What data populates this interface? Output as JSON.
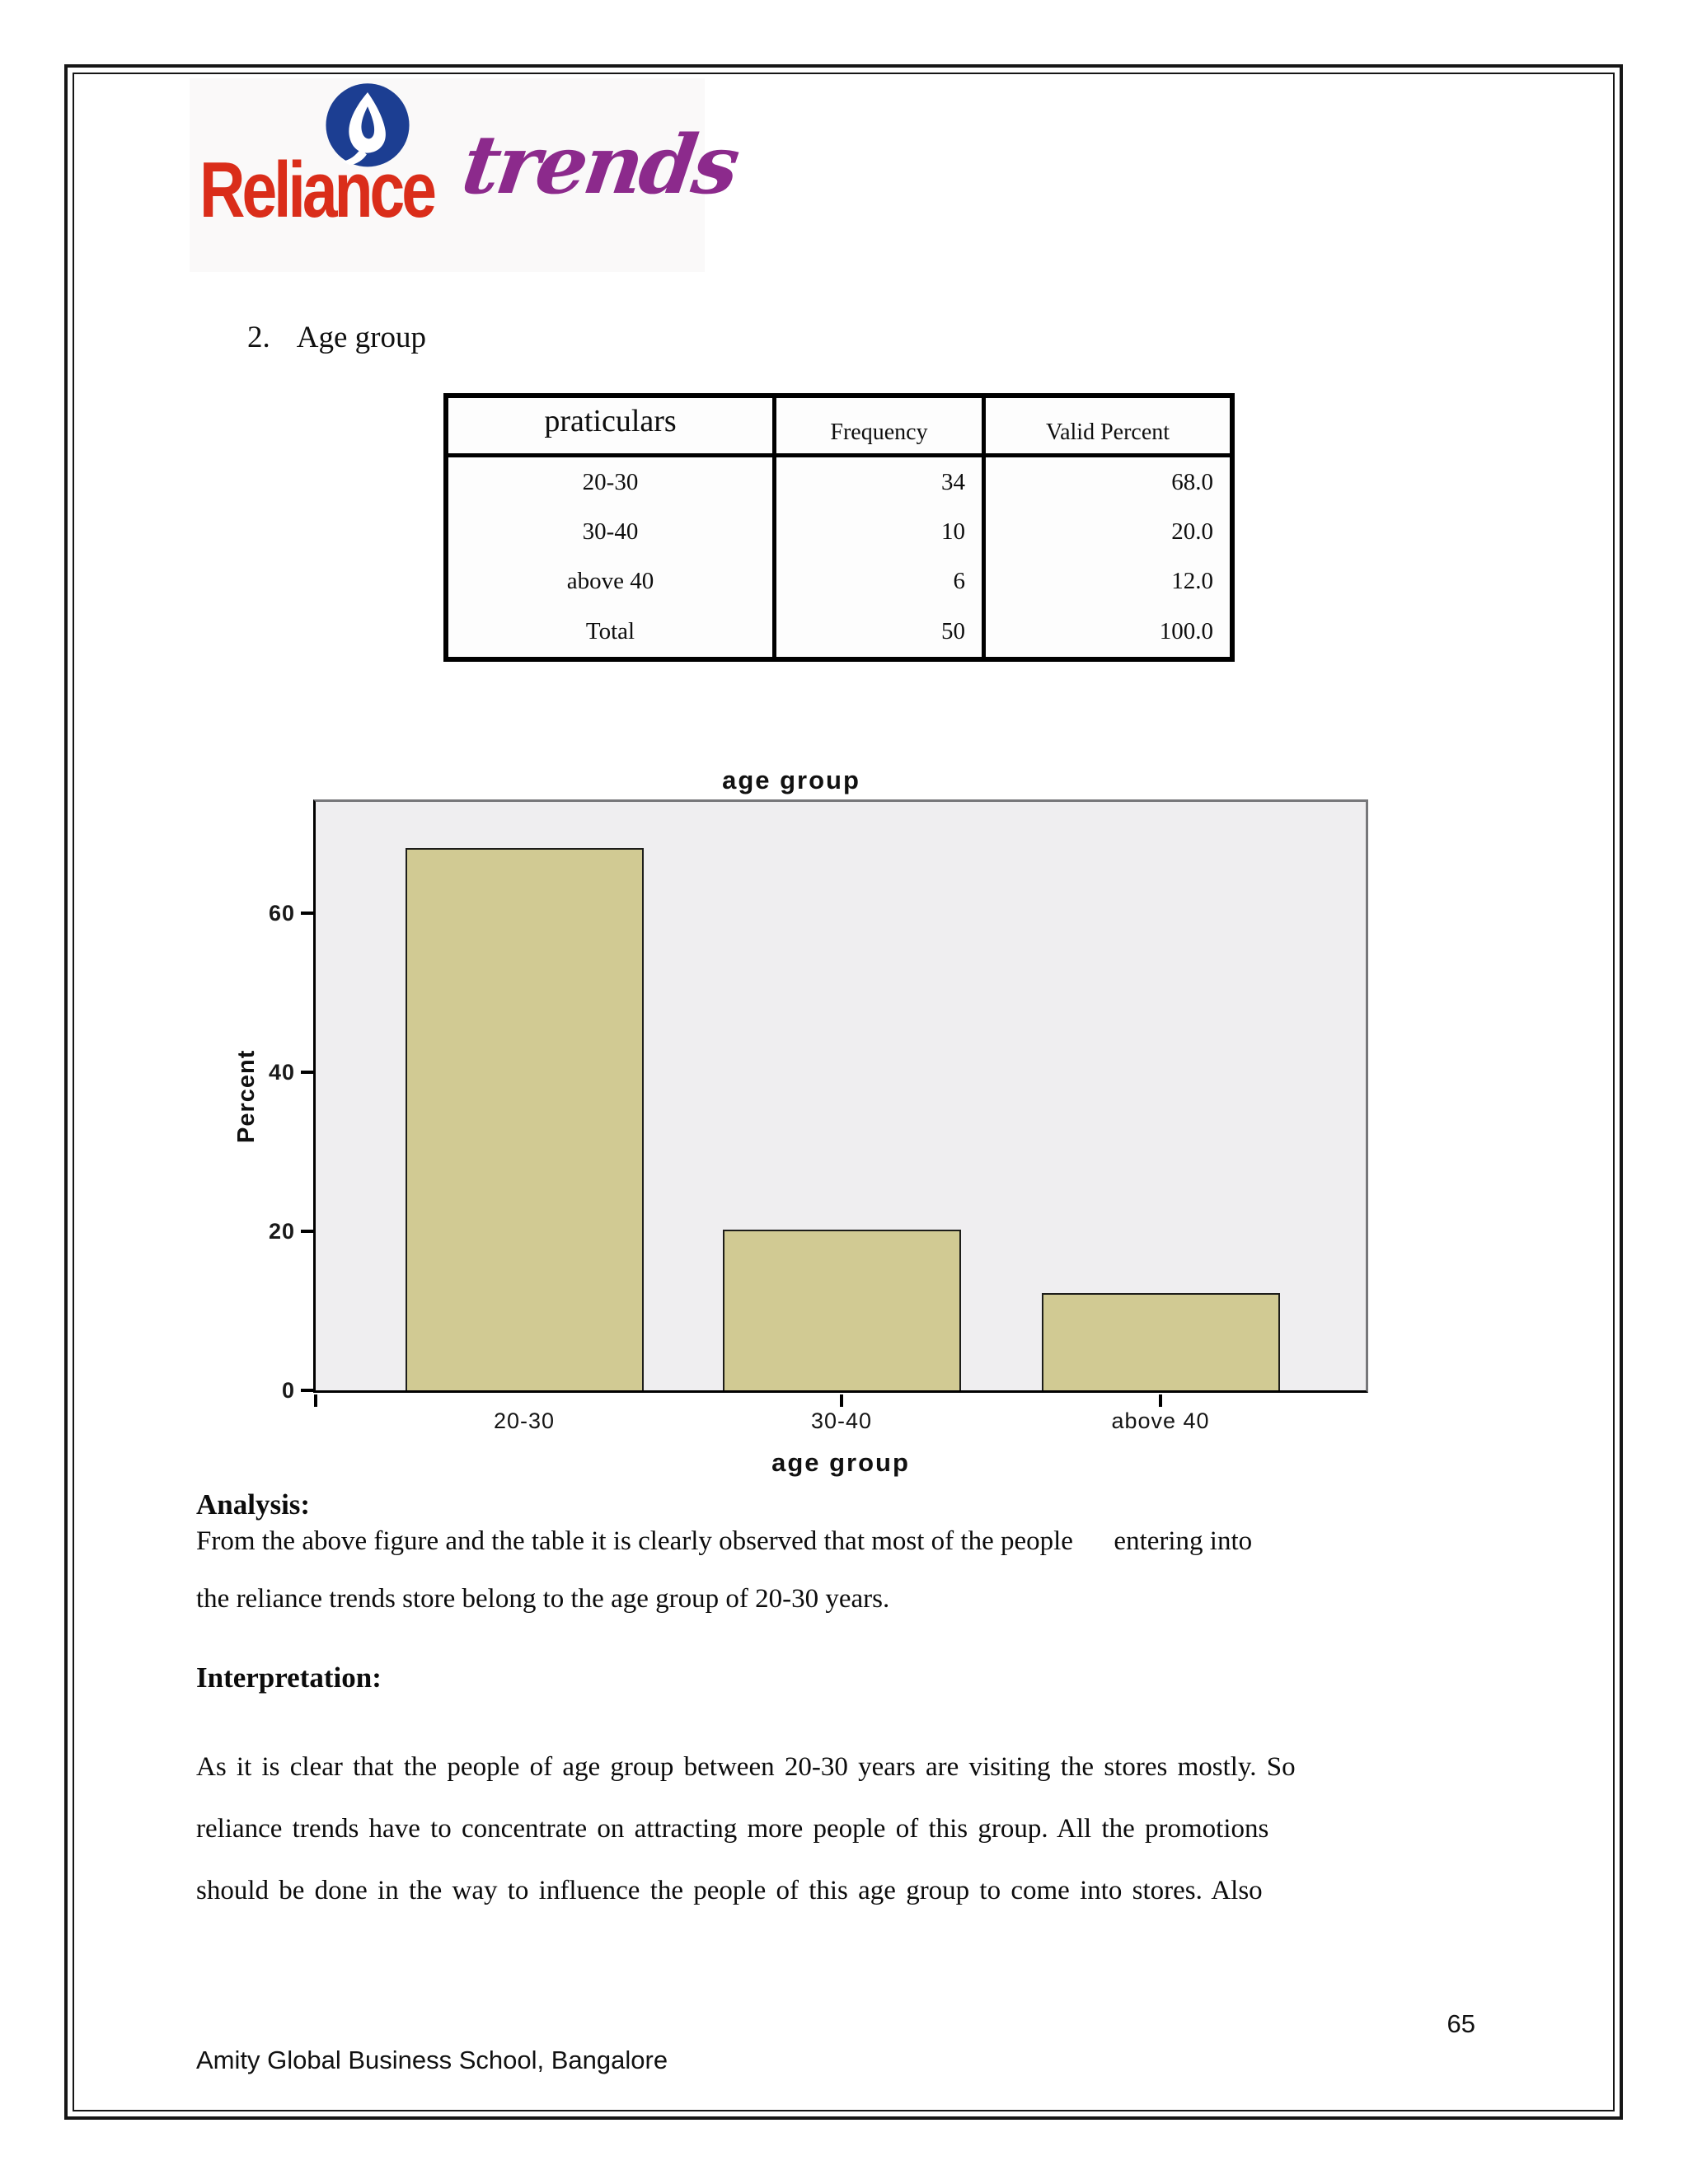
{
  "logo": {
    "brand": "Reliance",
    "script": "trends",
    "brand_color": "#da2d1a",
    "script_color": "#8c2a8c",
    "flame_color": "#1c3e92"
  },
  "heading": {
    "number": "2.",
    "label": "Age group"
  },
  "table": {
    "headers": [
      "praticulars",
      "Frequency",
      "Valid Percent"
    ],
    "rows": [
      {
        "label": "20-30",
        "frequency": "34",
        "valid_percent": "68.0"
      },
      {
        "label": "30-40",
        "frequency": "10",
        "valid_percent": "20.0"
      },
      {
        "label": "above 40",
        "frequency": "6",
        "valid_percent": "12.0"
      },
      {
        "label": "Total",
        "frequency": "50",
        "valid_percent": "100.0"
      }
    ]
  },
  "chart_data": {
    "type": "bar",
    "title": "age group",
    "xlabel": "age group",
    "ylabel": "Percent",
    "categories": [
      "20-30",
      "30-40",
      "above 40"
    ],
    "values": [
      68,
      20,
      12
    ],
    "yticks": [
      "60",
      "40",
      "20",
      "0"
    ],
    "ytick_values": [
      60,
      40,
      20,
      0
    ],
    "ylim": [
      0,
      74
    ],
    "grid": false,
    "legend": false,
    "bar_color": "#d1ca93",
    "plot_bg": "#efeef0"
  },
  "analysis": {
    "heading": "Analysis:",
    "lines": [
      "From the above figure and the table it is clearly observed that most of the people      entering into",
      "the reliance trends store belong to the age group of 20-30 years."
    ]
  },
  "interpretation": {
    "heading": "Interpretation:",
    "lines": [
      "As it is clear that the people of age group between 20-30 years are visiting the stores mostly. So",
      "reliance trends have to concentrate on attracting more people of this group. All the promotions",
      "should be done in the way to influence the people of this age group to come into stores. Also"
    ]
  },
  "footer": {
    "page_number": "65",
    "school": "Amity Global Business School, Bangalore"
  }
}
